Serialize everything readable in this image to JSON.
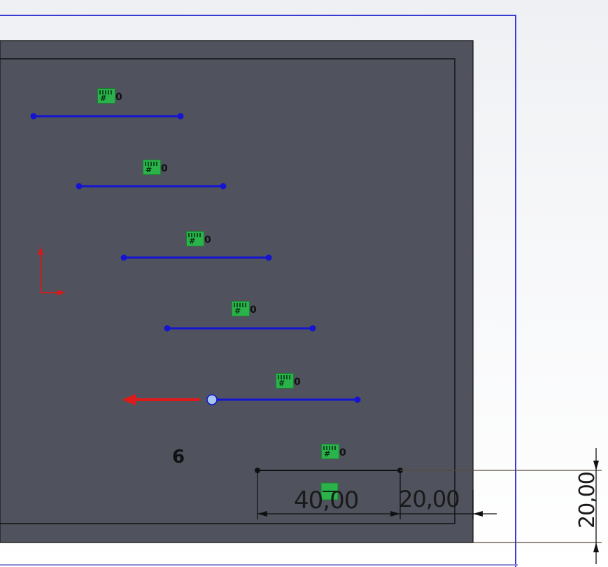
{
  "relation_zero": "0",
  "relation_hash": "#",
  "pattern_count": "6",
  "dimensions": {
    "horizontal_main": "40,00",
    "horizontal_small": "20,00",
    "vertical": "20,00"
  },
  "colors": {
    "sketch_line": "#1414d2",
    "sketch_plane": "#50535e",
    "selection_arrow": "#e01919",
    "relation_badge": "#2ab34a",
    "plane_border": "#3a3ad4"
  },
  "icons": {
    "relation": "relation-badge-icon",
    "origin": "origin-axis-icon",
    "arrow": "direction-arrow-icon"
  }
}
